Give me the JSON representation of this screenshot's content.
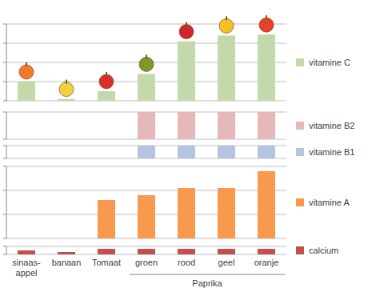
{
  "chart_data": {
    "type": "bar",
    "categories": [
      "sinaas-\nappel",
      "banaan",
      "Tomaat",
      "groen",
      "rood",
      "geel",
      "oranje"
    ],
    "x_group": {
      "label": "Paprika",
      "from": "groen",
      "to": "oranje"
    },
    "grid": true,
    "legend": "right",
    "series": [
      {
        "name": "vitamine C",
        "color": "#c4d9a9",
        "values": [
          1.0,
          0.1,
          0.5,
          1.4,
          3.1,
          3.4,
          3.45
        ],
        "ylim": [
          0,
          4
        ],
        "yticks": [
          0,
          1,
          2,
          3,
          4
        ]
      },
      {
        "name": "vitamine B2",
        "color": "#e6b9b8",
        "values": [
          0,
          0,
          0,
          1,
          1,
          1,
          1
        ],
        "ylim": [
          0,
          1
        ],
        "yticks": [
          0,
          1
        ]
      },
      {
        "name": "vitamine B1",
        "color": "#b4c3de",
        "values": [
          0,
          0,
          0,
          1,
          1,
          1,
          1
        ],
        "ylim": [
          0,
          1
        ],
        "yticks": [
          0,
          1
        ]
      },
      {
        "name": "vitamine A",
        "color": "#f79a4d",
        "values": [
          0,
          0,
          1.6,
          1.8,
          2.1,
          2.1,
          2.8
        ],
        "ylim": [
          0,
          3
        ],
        "yticks": [
          0,
          1,
          2,
          3
        ]
      },
      {
        "name": "calcium",
        "color": "#c0504d",
        "values": [
          0.5,
          0.3,
          0.7,
          0.7,
          0.7,
          0.7,
          0.7
        ],
        "ylim": [
          0,
          1
        ],
        "yticks": [
          0,
          1
        ]
      }
    ]
  }
}
